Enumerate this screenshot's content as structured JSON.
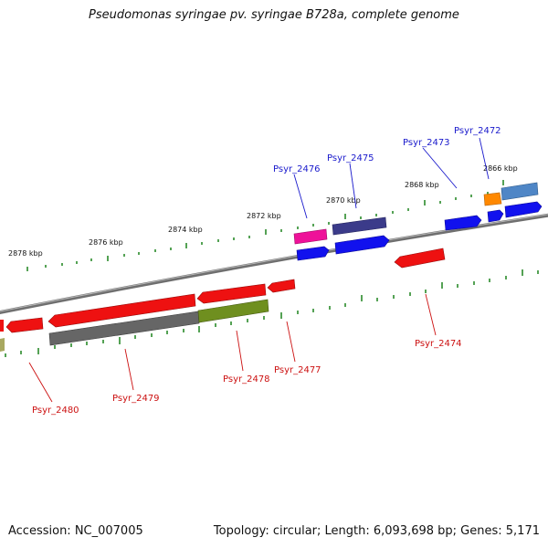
{
  "title": "Pseudomonas syringae pv. syringae B728a, complete genome",
  "footer": {
    "accession": "Accession: NC_007005",
    "summary": "Topology: circular; Length: 6,093,698 bp; Genes: 5,171"
  },
  "ticks": [
    "2866 kbp",
    "2868 kbp",
    "2870 kbp",
    "2872 kbp",
    "2874 kbp",
    "2876 kbp",
    "2878 kbp"
  ],
  "genes_forward": [
    "Psyr_2472",
    "Psyr_2473",
    "Psyr_2475",
    "Psyr_2476"
  ],
  "genes_reverse": [
    "Psyr_2474",
    "Psyr_2477",
    "Psyr_2478",
    "Psyr_2479",
    "Psyr_2480"
  ],
  "colors": {
    "backbone": "#808080",
    "tick": "#2a8a2a",
    "forward_label": "#1a1acc",
    "reverse_label": "#cc1111",
    "red": "#ee1111",
    "blue": "#1111ee",
    "navy": "#3b3b8a",
    "magenta": "#ee1199",
    "orange": "#ff8800",
    "steel": "#4f86c6",
    "olive": "#6f8f1f",
    "gray": "#666666"
  }
}
